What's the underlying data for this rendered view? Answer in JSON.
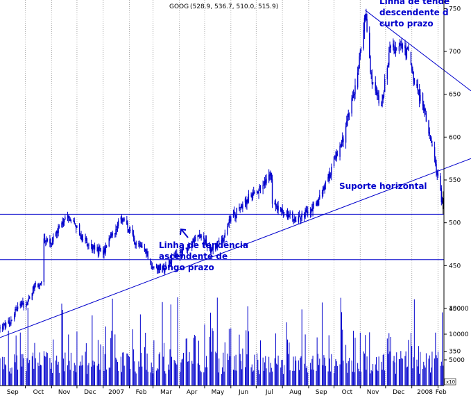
{
  "chart_data": {
    "type": "candlestick",
    "ticker": "GOOG",
    "ohlc_header": "(528.9, 536.7, 510.0, 515.9)",
    "last_bar": {
      "open": 528.9,
      "high": 536.7,
      "low": 510.0,
      "close": 515.9
    },
    "price_axis": {
      "side": "right",
      "range": [
        310,
        760
      ],
      "ticks": [
        350,
        400,
        450,
        500,
        550,
        600,
        650,
        700,
        750
      ]
    },
    "volume_axis": {
      "side": "right",
      "range": [
        0,
        18000
      ],
      "ticks": [
        5000,
        10000,
        15000
      ],
      "unit_label": "x10"
    },
    "x_axis": {
      "labels": [
        "Sep",
        "Oct",
        "Nov",
        "Dec",
        "2007",
        "Feb",
        "Mar",
        "Apr",
        "May",
        "Jun",
        "Jul",
        "Aug",
        "Sep",
        "Oct",
        "Nov",
        "Dec",
        "2008",
        "Feb"
      ],
      "start": "2006-09-01",
      "end": "2008-02-08"
    },
    "grid": "vertical dotted",
    "price_path": [
      [
        "2006-09-01",
        377
      ],
      [
        "2006-09-12",
        383
      ],
      [
        "2006-09-22",
        404
      ],
      [
        "2006-10-02",
        405
      ],
      [
        "2006-10-12",
        428
      ],
      [
        "2006-10-20",
        428
      ],
      [
        "2006-10-23",
        478
      ],
      [
        "2006-11-01",
        478
      ],
      [
        "2006-11-08",
        490
      ],
      [
        "2006-11-22",
        508
      ],
      [
        "2006-12-05",
        485
      ],
      [
        "2006-12-20",
        470
      ],
      [
        "2007-01-03",
        466
      ],
      [
        "2007-01-12",
        488
      ],
      [
        "2007-01-24",
        505
      ],
      [
        "2007-02-06",
        480
      ],
      [
        "2007-02-20",
        470
      ],
      [
        "2007-03-01",
        445
      ],
      [
        "2007-03-12",
        446
      ],
      [
        "2007-03-26",
        460
      ],
      [
        "2007-04-10",
        472
      ],
      [
        "2007-04-24",
        484
      ],
      [
        "2007-05-08",
        470
      ],
      [
        "2007-05-22",
        480
      ],
      [
        "2007-06-01",
        505
      ],
      [
        "2007-06-15",
        522
      ],
      [
        "2007-06-28",
        535
      ],
      [
        "2007-07-10",
        545
      ],
      [
        "2007-07-19",
        555
      ],
      [
        "2007-07-20",
        520
      ],
      [
        "2007-08-01",
        514
      ],
      [
        "2007-08-15",
        505
      ],
      [
        "2007-08-28",
        510
      ],
      [
        "2007-09-10",
        522
      ],
      [
        "2007-09-20",
        540
      ],
      [
        "2007-10-02",
        575
      ],
      [
        "2007-10-12",
        600
      ],
      [
        "2007-10-24",
        650
      ],
      [
        "2007-11-01",
        700
      ],
      [
        "2007-11-07",
        745
      ],
      [
        "2007-11-15",
        660
      ],
      [
        "2007-11-26",
        640
      ],
      [
        "2007-12-06",
        700
      ],
      [
        "2007-12-14",
        705
      ],
      [
        "2007-12-27",
        700
      ],
      [
        "2008-01-04",
        660
      ],
      [
        "2008-01-14",
        640
      ],
      [
        "2008-01-22",
        600
      ],
      [
        "2008-01-31",
        560
      ],
      [
        "2008-02-07",
        516
      ]
    ],
    "volume": {
      "typical": 5000,
      "high_spikes": 17500
    },
    "trendlines": [
      {
        "label": "Linha de tendência ascendente de longo prazo",
        "from": [
          "2006-09-01",
          366
        ],
        "to": [
          "2008-02-08",
          563
        ]
      },
      {
        "label": "Linha de tendência descendente de curto prazo",
        "from": [
          "2007-11-07",
          748
        ],
        "to": [
          "2008-02-08",
          678
        ]
      },
      {
        "label": "Suporte horizontal",
        "from": [
          "2006-09-01",
          510
        ],
        "to": [
          "2008-02-08",
          510
        ]
      },
      {
        "label": "",
        "from": [
          "2006-09-01",
          457
        ],
        "to": [
          "2008-02-08",
          457
        ]
      }
    ],
    "colors": {
      "price": "#0000cc",
      "last_candle": "#000000",
      "lines": "#0000cc",
      "annotation_text": "#0000cc",
      "grid": "#aaaaaa",
      "background": "#ffffff"
    }
  },
  "annotations": {
    "short_term_line": [
      "Linha de tende",
      "descendente d",
      "curto prazo"
    ],
    "horizontal_support": "Suporte horizontal",
    "long_term_line": [
      "Linha de tendência",
      "ascendente de",
      "longo prazo"
    ]
  }
}
